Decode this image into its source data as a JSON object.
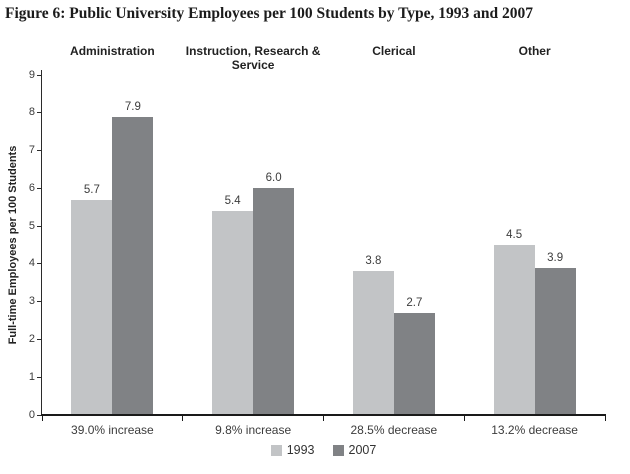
{
  "title": "Figure 6: Public University Employees per 100 Students by Type, 1993 and 2007",
  "chart_data": {
    "type": "bar",
    "title": "Figure 6: Public University Employees per 100 Students by Type, 1993 and 2007",
    "ylabel": "Full-time Employees per 100 Students",
    "xlabel": "",
    "ylim": [
      0,
      9
    ],
    "ytick_step": 1,
    "grid": false,
    "legend_position": "bottom-center",
    "categories": [
      "Administration",
      "Instruction, Research & Service",
      "Clerical",
      "Other"
    ],
    "category_change_labels": [
      "39.0% increase",
      "9.8% increase",
      "28.5% decrease",
      "13.2% decrease"
    ],
    "series": [
      {
        "name": "1993",
        "color": "#c2c4c6",
        "values": [
          5.7,
          5.4,
          3.8,
          4.5
        ]
      },
      {
        "name": "2007",
        "color": "#808285",
        "values": [
          7.9,
          6.0,
          2.7,
          3.9
        ]
      }
    ],
    "value_label_decimals": 1,
    "axis_color": "#1a1a1a"
  }
}
